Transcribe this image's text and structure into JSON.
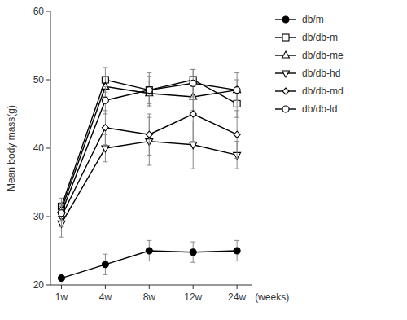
{
  "chart_data": {
    "type": "line",
    "ylabel": "Mean body mass(g)",
    "annotation": "(weeks)",
    "categories": [
      "1w",
      "4w",
      "8w",
      "12w",
      "24w"
    ],
    "series": [
      {
        "name": "db/m",
        "color": "#000000",
        "marker": "filled-circle",
        "values": [
          21.0,
          23.0,
          25.0,
          24.8,
          25.0
        ],
        "errors": [
          0.4,
          1.5,
          1.5,
          1.5,
          1.5
        ]
      },
      {
        "name": "db/db-m",
        "color": "#000000",
        "marker": "open-square",
        "values": [
          31.5,
          50.0,
          48.5,
          50.0,
          46.5
        ],
        "errors": [
          1.2,
          1.8,
          2.0,
          1.5,
          2.0
        ]
      },
      {
        "name": "db/db-me",
        "color": "#000000",
        "marker": "open-triangle-up",
        "values": [
          31.0,
          49.0,
          48.0,
          47.5,
          48.5
        ],
        "errors": [
          1.0,
          1.5,
          1.8,
          2.0,
          1.5
        ]
      },
      {
        "name": "db/db-hd",
        "color": "#000000",
        "marker": "open-triangle-down",
        "values": [
          29.0,
          40.0,
          41.0,
          40.5,
          39.0
        ],
        "errors": [
          2.0,
          2.0,
          3.5,
          3.5,
          2.0
        ]
      },
      {
        "name": "db/db-md",
        "color": "#000000",
        "marker": "open-diamond",
        "values": [
          30.0,
          43.0,
          42.0,
          45.0,
          42.0
        ],
        "errors": [
          1.5,
          2.5,
          3.0,
          4.0,
          3.5
        ]
      },
      {
        "name": "db/db-ld",
        "color": "#000000",
        "marker": "open-circle",
        "values": [
          30.5,
          47.0,
          48.5,
          49.5,
          48.5
        ],
        "errors": [
          1.2,
          2.0,
          2.5,
          2.0,
          2.5
        ]
      }
    ],
    "ylim": [
      20,
      60
    ],
    "yticks": [
      20,
      30,
      40,
      50,
      60
    ],
    "grid": false,
    "legend": "right"
  }
}
